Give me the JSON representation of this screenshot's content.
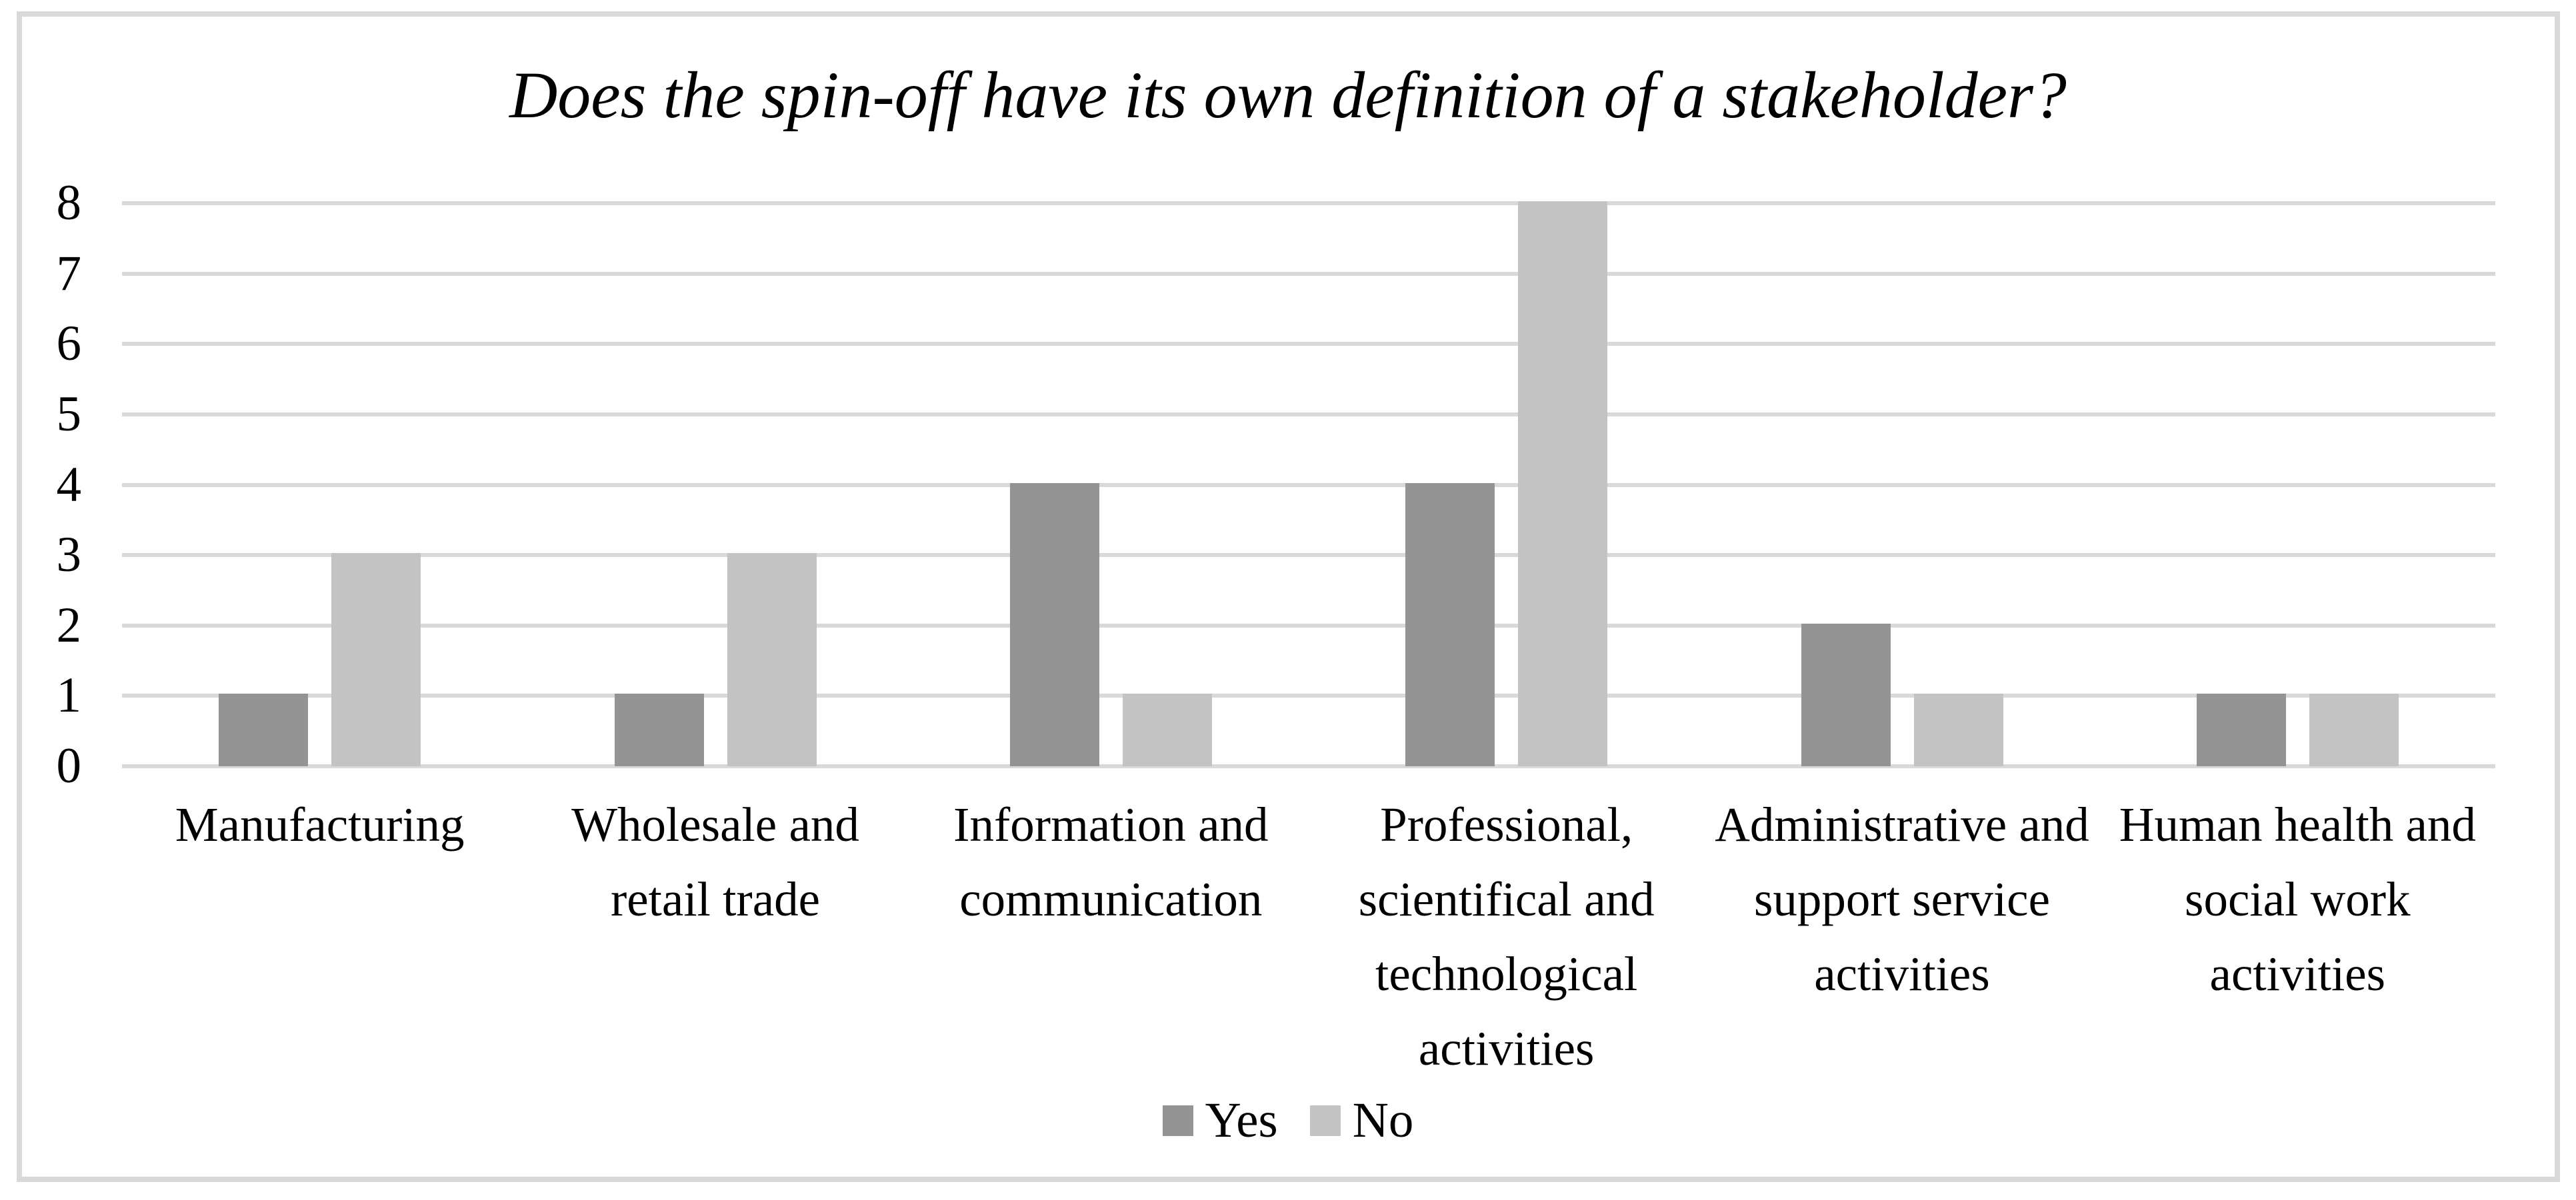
{
  "figure": {
    "title": "Does the spin-off have its own definition of a stakeholder?"
  },
  "chart_data": {
    "type": "bar",
    "title": "Does the spin-off have its own definition of a stakeholder?",
    "categories": [
      "Manufacturing",
      "Wholesale and retail trade",
      "Information and communication",
      "Professional, scientifical and technological activities",
      "Administrative and support service activities",
      "Human health and social work activities"
    ],
    "category_lines": [
      [
        "Manufacturing"
      ],
      [
        "Wholesale and",
        "retail trade"
      ],
      [
        "Information and",
        "communication"
      ],
      [
        "Professional,",
        "scientifical and",
        "technological",
        "activities"
      ],
      [
        "Administrative and",
        "support service",
        "activities"
      ],
      [
        "Human health and",
        "social work",
        "activities"
      ]
    ],
    "series": [
      {
        "name": "Yes",
        "color": "#949494",
        "values": [
          1,
          1,
          4,
          4,
          2,
          1
        ]
      },
      {
        "name": "No",
        "color": "#c3c3c3",
        "values": [
          3,
          3,
          1,
          8,
          1,
          1
        ]
      }
    ],
    "y_axis": {
      "min": 0,
      "max": 8,
      "step": 1,
      "ticks": [
        "0",
        "1",
        "2",
        "3",
        "4",
        "5",
        "6",
        "7",
        "8"
      ]
    },
    "xlabel": "",
    "ylabel": "",
    "grid": "horizontal-on",
    "legend_position": "bottom-center",
    "colors": {
      "gridline": "#d9d9d9",
      "frame_border": "#d9d9d9",
      "text": "#000000"
    }
  }
}
